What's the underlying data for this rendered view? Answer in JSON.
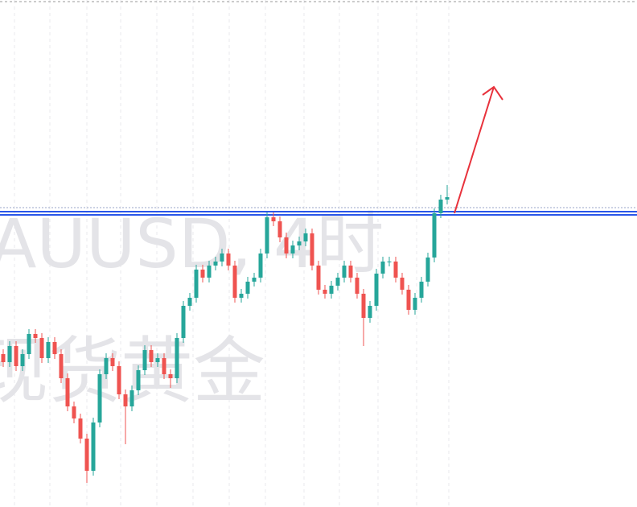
{
  "chart_data": {
    "type": "candlestick",
    "watermark": [
      "AUUSD, 4时",
      "现货黄金"
    ],
    "ylim": [
      0,
      630
    ],
    "up_color": "#26a69a",
    "down_color": "#ef5350",
    "open": [
      190,
      180,
      200,
      175,
      190,
      215,
      210,
      185,
      205,
      190,
      160,
      125,
      110,
      85,
      45,
      105,
      165,
      185,
      175,
      140,
      125,
      145,
      170,
      195,
      180,
      185,
      165,
      160,
      210,
      250,
      260,
      295,
      285,
      300,
      305,
      315,
      300,
      260,
      265,
      280,
      285,
      315,
      360,
      355,
      335,
      315,
      325,
      330,
      340,
      300,
      270,
      265,
      275,
      285,
      300,
      285,
      265,
      235,
      250,
      290,
      305,
      305,
      285,
      270,
      245,
      260,
      280,
      310,
      365,
      382
    ],
    "high": [
      196,
      206,
      206,
      196,
      221,
      221,
      216,
      211,
      211,
      196,
      166,
      131,
      116,
      91,
      111,
      171,
      191,
      191,
      181,
      146,
      151,
      176,
      201,
      201,
      191,
      191,
      171,
      216,
      256,
      266,
      301,
      301,
      306,
      311,
      321,
      321,
      306,
      271,
      286,
      291,
      321,
      366,
      366,
      361,
      341,
      331,
      336,
      346,
      346,
      306,
      276,
      281,
      291,
      306,
      306,
      291,
      271,
      256,
      296,
      311,
      311,
      311,
      291,
      276,
      266,
      286,
      316,
      371,
      388,
      400
    ],
    "low": [
      174,
      174,
      169,
      169,
      184,
      204,
      179,
      179,
      184,
      154,
      119,
      104,
      79,
      30,
      39,
      99,
      159,
      169,
      134,
      78,
      119,
      139,
      164,
      174,
      174,
      159,
      148,
      154,
      204,
      244,
      254,
      279,
      279,
      294,
      299,
      294,
      254,
      254,
      259,
      274,
      279,
      309,
      349,
      329,
      309,
      309,
      319,
      324,
      294,
      264,
      259,
      259,
      269,
      279,
      279,
      259,
      200,
      229,
      244,
      284,
      299,
      279,
      264,
      239,
      239,
      254,
      274,
      304,
      359,
      376
    ],
    "close": [
      180,
      200,
      175,
      190,
      215,
      210,
      185,
      205,
      190,
      160,
      125,
      110,
      85,
      45,
      105,
      165,
      185,
      175,
      140,
      125,
      145,
      170,
      195,
      180,
      185,
      165,
      160,
      210,
      250,
      260,
      295,
      285,
      300,
      305,
      315,
      300,
      260,
      265,
      280,
      285,
      315,
      360,
      355,
      335,
      315,
      325,
      330,
      340,
      300,
      270,
      265,
      275,
      285,
      300,
      285,
      265,
      235,
      250,
      290,
      305,
      305,
      285,
      270,
      245,
      260,
      280,
      310,
      365,
      382,
      385
    ],
    "levels": [
      {
        "value": 372,
        "color": "#9aa6c8",
        "style": "dotted"
      },
      {
        "value": 367,
        "color": "#2a56e8",
        "style": "solid"
      },
      {
        "value": 363,
        "color": "#2a56e8",
        "style": "solid"
      }
    ]
  }
}
